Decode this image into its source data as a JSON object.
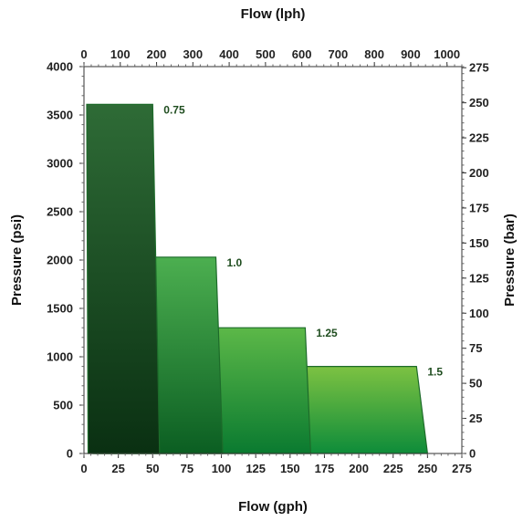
{
  "chart_data": {
    "type": "area",
    "title": "",
    "axes": {
      "x_bottom": {
        "label": "Flow (gph)",
        "range": [
          0,
          275
        ],
        "ticks": [
          0,
          25,
          50,
          75,
          100,
          125,
          150,
          175,
          200,
          225,
          250,
          275
        ]
      },
      "x_top": {
        "label": "Flow (lph)",
        "range": [
          0,
          1041
        ],
        "ticks": [
          0,
          100,
          200,
          300,
          400,
          500,
          600,
          700,
          800,
          900,
          1000
        ]
      },
      "y_left": {
        "label": "Pressure (psi)",
        "range": [
          0,
          4000
        ],
        "ticks": [
          0,
          500,
          1000,
          1500,
          2000,
          2500,
          3000,
          3500,
          4000
        ]
      },
      "y_right": {
        "label": "Pressure (bar)",
        "range": [
          0,
          275.8
        ],
        "ticks": [
          0,
          25,
          50,
          75,
          100,
          125,
          150,
          175,
          200,
          225,
          250,
          275
        ]
      }
    },
    "grid": false,
    "series": [
      {
        "name": "1.5",
        "color_top": "#7dc242",
        "color_bottom": "#0e8c3a",
        "points": [
          [
            9,
            0
          ],
          [
            7,
            900
          ],
          [
            242,
            900
          ],
          [
            250,
            0
          ]
        ]
      },
      {
        "name": "1.25",
        "color_top": "#5cb848",
        "color_bottom": "#0a7a30",
        "points": [
          [
            7,
            0
          ],
          [
            6,
            1300
          ],
          [
            161,
            1300
          ],
          [
            165,
            0
          ]
        ]
      },
      {
        "name": "1.0",
        "color_top": "#4caf50",
        "color_bottom": "#0b5e22",
        "points": [
          [
            5,
            0
          ],
          [
            4,
            2030
          ],
          [
            96,
            2030
          ],
          [
            101,
            0
          ]
        ]
      },
      {
        "name": "0.75",
        "color_top": "#2e6b36",
        "color_bottom": "#0a3012",
        "points": [
          [
            3,
            0
          ],
          [
            2,
            3610
          ],
          [
            50,
            3610
          ],
          [
            55,
            0
          ]
        ]
      }
    ]
  }
}
